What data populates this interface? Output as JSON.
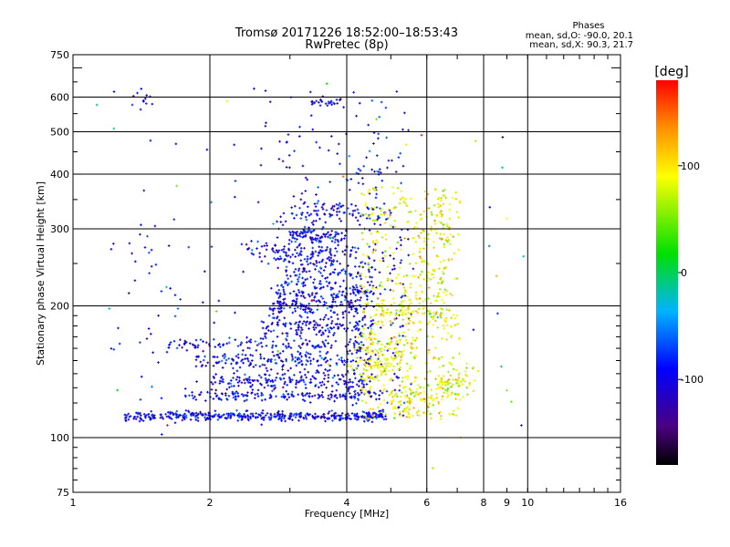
{
  "chart_data": {
    "type": "scatter",
    "title": "Tromsø 20171226 18:52:00–18:53:43",
    "subtitle": "RwPretec (8p)",
    "xlabel": "Frequency [MHz]",
    "ylabel": "Stationary phase Virtual Height [km]",
    "xscale": "log",
    "yscale": "log",
    "xlim": [
      1,
      16
    ],
    "ylim": [
      75,
      750
    ],
    "xticks": [
      1,
      2,
      4,
      6,
      8,
      9,
      10,
      16
    ],
    "xtick_labels": [
      "1",
      "2",
      "4",
      "6",
      "8",
      "9",
      "10",
      "16"
    ],
    "xgrid": [
      2,
      4,
      6,
      8,
      10
    ],
    "yticks": [
      75,
      100,
      200,
      300,
      400,
      500,
      600,
      750
    ],
    "ytick_labels": [
      "75",
      "100",
      "200",
      "300",
      "400",
      "500",
      "600",
      "750"
    ],
    "ygrid": [
      100,
      200,
      300,
      400,
      500,
      600
    ],
    "grid": true,
    "legend": {
      "title": "Phases",
      "lines": [
        "mean, sd,O: -90.0, 20.1",
        "mean, sd,X:  90.3, 21.7"
      ]
    },
    "colorbar": {
      "label": "[deg]",
      "min": -180,
      "max": 180,
      "ticks": [
        100,
        0,
        -100
      ],
      "tick_labels": [
        "100",
        "0",
        "-100"
      ],
      "colormap": "rainbow: black/purple → blue → cyan → green → yellow → red"
    },
    "o_mode": {
      "description": "Blue/purple points (phase ≈ -90°): traces on the 110 km layer starting near 1.3 MHz; ~160, ~170, ~215, ~265, ~300, ~330 km layers reaching to about 5 MHz; sparse points near 580–600 km",
      "phase_mean": -90.0,
      "phase_sd": 20.1
    },
    "x_mode": {
      "description": "Yellow/orange points (phase ≈ +90°): a dense cluster at 4–7.5 MHz between ~110 and ~380 km",
      "phase_mean": 90.3,
      "phase_sd": 21.7
    }
  }
}
